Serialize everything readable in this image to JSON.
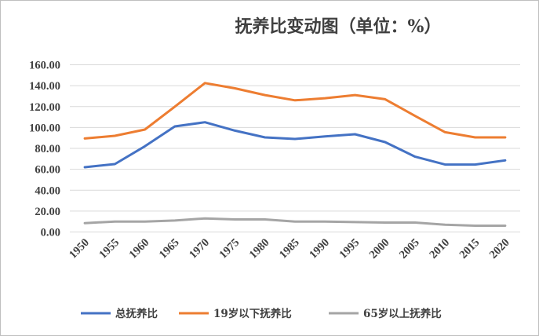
{
  "chart_data": {
    "type": "line",
    "title": "抚养比变动图（单位：%）",
    "xlabel": "",
    "ylabel": "",
    "categories": [
      "1950",
      "1955",
      "1960",
      "1965",
      "1970",
      "1975",
      "1980",
      "1985",
      "1990",
      "1995",
      "2000",
      "2005",
      "2010",
      "2015",
      "2020"
    ],
    "ylim": [
      0,
      160
    ],
    "yticks": [
      "0.00",
      "20.00",
      "40.00",
      "60.00",
      "80.00",
      "100.00",
      "120.00",
      "140.00",
      "160.00"
    ],
    "grid": true,
    "legend_position": "bottom",
    "series": [
      {
        "name": "总抚养比",
        "color": "#4472c4",
        "values": [
          62,
          65,
          82,
          101,
          105,
          97,
          90.5,
          89,
          91.5,
          93.5,
          86,
          72,
          64.5,
          64.5,
          68.5
        ]
      },
      {
        "name": "19岁以下抚养比",
        "color": "#ed7d31",
        "values": [
          89.5,
          92,
          98,
          120,
          142.5,
          137.5,
          131,
          126,
          128,
          131,
          127,
          111,
          95.5,
          90.5,
          90.5
        ]
      },
      {
        "name": "65岁以上抚养比",
        "color": "#a5a5a5",
        "values": [
          8.5,
          10,
          10,
          11,
          13,
          12,
          12,
          10,
          10,
          9.5,
          9,
          9,
          7,
          6,
          6
        ]
      }
    ]
  }
}
